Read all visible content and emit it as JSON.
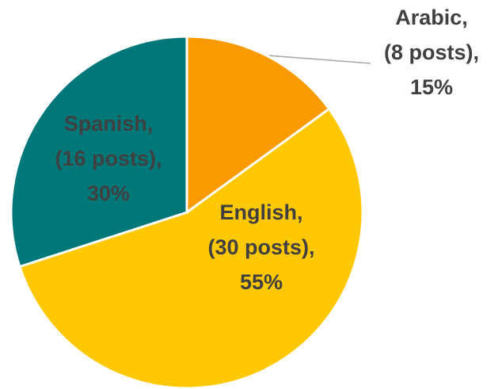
{
  "chart_data": {
    "type": "pie",
    "categories": [
      "Arabic",
      "English",
      "Spanish"
    ],
    "values": [
      15,
      55,
      30
    ],
    "value_labels": [
      [
        "Arabic,",
        "(8 posts),",
        "15%"
      ],
      [
        "English,",
        "(30 posts),",
        "55%"
      ],
      [
        "Spanish,",
        "(16 posts),",
        "30%"
      ]
    ],
    "colors": [
      "#f99b00",
      "#ffc800",
      "#00787a"
    ]
  }
}
